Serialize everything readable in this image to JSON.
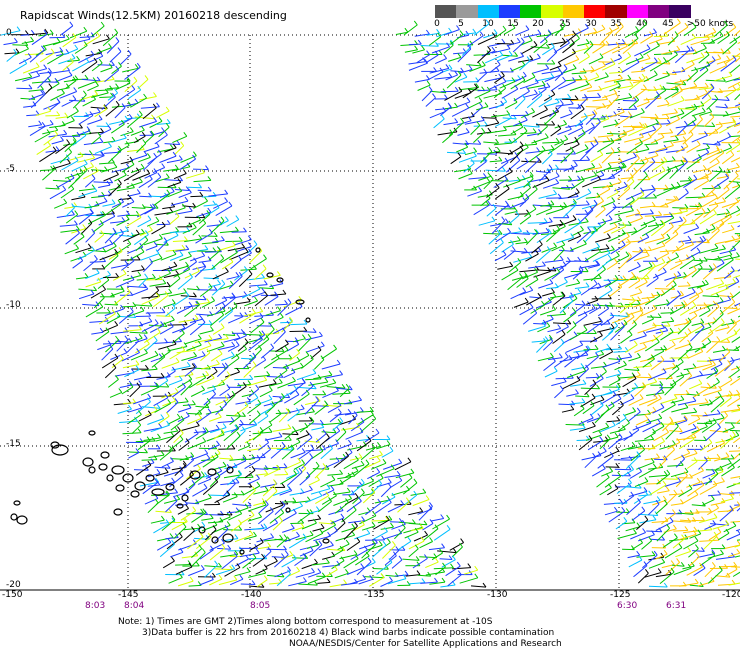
{
  "title": "Rapidscat Winds(12.5KM) 20160218 descending",
  "legend": {
    "labels": [
      "0",
      "5",
      "10",
      "15",
      "20",
      "25",
      "30",
      "35",
      "40",
      "45",
      ">50 knots"
    ],
    "colors": [
      "#555555",
      "#9a9a9a",
      "#00bfff",
      "#1c3cff",
      "#00c400",
      "#d8ff00",
      "#ffc800",
      "#ff0000",
      "#a00000",
      "#ff00ff",
      "#800080",
      "#3a0060"
    ]
  },
  "lat_labels": [
    "0",
    "-5",
    "-10",
    "-15",
    "-20"
  ],
  "lon_labels": [
    "-150",
    "-145",
    "-140",
    "-135",
    "-130",
    "-125",
    "-120"
  ],
  "times": [
    "8:03",
    "8:04",
    "8:05",
    "6:30",
    "6:31"
  ],
  "notes": {
    "line1": "Note: 1) Times are GMT 2)Times along bottom correspond to measurement at -10S",
    "line2": "3)Data buffer is 22 hrs from 20160218 4) Black wind barbs indicate possible contamination",
    "line3": "NOAA/NESDIS/Center for Satellite Applications and Research"
  }
}
